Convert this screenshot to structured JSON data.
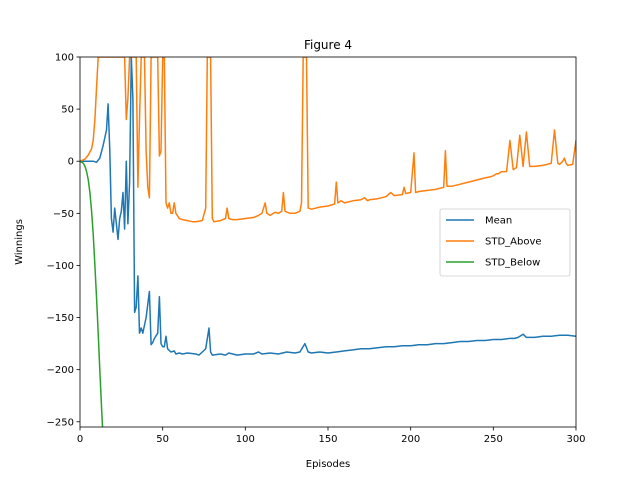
{
  "chart_data": {
    "type": "line",
    "title": "Figure 4",
    "xlabel": "Episodes",
    "ylabel": "Winnings",
    "xlim": [
      0,
      300
    ],
    "ylim": [
      -255,
      100
    ],
    "xticks": [
      0,
      50,
      100,
      150,
      200,
      250,
      300
    ],
    "yticks": [
      -250,
      -200,
      -150,
      -100,
      -50,
      0,
      50,
      100
    ],
    "grid": false,
    "legend_position": "center-right",
    "series": [
      {
        "name": "Mean",
        "color": "#1f77b4",
        "points": [
          [
            0,
            0
          ],
          [
            5,
            0
          ],
          [
            8,
            0
          ],
          [
            10,
            -1
          ],
          [
            12,
            3
          ],
          [
            14,
            15
          ],
          [
            16,
            30
          ],
          [
            17,
            55
          ],
          [
            18,
            10
          ],
          [
            19,
            -55
          ],
          [
            20,
            -68
          ],
          [
            21,
            -45
          ],
          [
            22,
            -60
          ],
          [
            23,
            -75
          ],
          [
            24,
            -55
          ],
          [
            25,
            -48
          ],
          [
            26,
            -30
          ],
          [
            27,
            -65
          ],
          [
            28,
            0
          ],
          [
            29,
            -60
          ],
          [
            30,
            -20
          ],
          [
            31,
            100
          ],
          [
            32,
            60
          ],
          [
            33,
            -145
          ],
          [
            34,
            -140
          ],
          [
            35,
            -110
          ],
          [
            36,
            -165
          ],
          [
            37,
            -160
          ],
          [
            38,
            -165
          ],
          [
            40,
            -150
          ],
          [
            42,
            -125
          ],
          [
            43,
            -176
          ],
          [
            44,
            -174
          ],
          [
            45,
            -170
          ],
          [
            47,
            -165
          ],
          [
            48,
            -130
          ],
          [
            49,
            -175
          ],
          [
            50,
            -178
          ],
          [
            51,
            -178
          ],
          [
            52,
            -168
          ],
          [
            53,
            -180
          ],
          [
            55,
            -183
          ],
          [
            57,
            -182
          ],
          [
            58,
            -185
          ],
          [
            60,
            -184
          ],
          [
            62,
            -185
          ],
          [
            65,
            -184
          ],
          [
            70,
            -185
          ],
          [
            72,
            -186
          ],
          [
            74,
            -183
          ],
          [
            76,
            -180
          ],
          [
            78,
            -160
          ],
          [
            79,
            -183
          ],
          [
            80,
            -186
          ],
          [
            85,
            -185
          ],
          [
            88,
            -186
          ],
          [
            90,
            -184
          ],
          [
            95,
            -186
          ],
          [
            100,
            -185
          ],
          [
            105,
            -185
          ],
          [
            108,
            -183
          ],
          [
            110,
            -185
          ],
          [
            115,
            -184
          ],
          [
            120,
            -185
          ],
          [
            125,
            -183
          ],
          [
            130,
            -184
          ],
          [
            133,
            -183
          ],
          [
            136,
            -175
          ],
          [
            138,
            -183
          ],
          [
            140,
            -184
          ],
          [
            145,
            -183
          ],
          [
            150,
            -184
          ],
          [
            155,
            -183
          ],
          [
            160,
            -182
          ],
          [
            165,
            -181
          ],
          [
            170,
            -180
          ],
          [
            175,
            -180
          ],
          [
            180,
            -179
          ],
          [
            185,
            -178
          ],
          [
            190,
            -178
          ],
          [
            195,
            -177
          ],
          [
            200,
            -177
          ],
          [
            205,
            -176
          ],
          [
            210,
            -176
          ],
          [
            215,
            -175
          ],
          [
            220,
            -175
          ],
          [
            225,
            -174
          ],
          [
            230,
            -173
          ],
          [
            235,
            -173
          ],
          [
            240,
            -172
          ],
          [
            245,
            -172
          ],
          [
            250,
            -171
          ],
          [
            255,
            -171
          ],
          [
            260,
            -170
          ],
          [
            263,
            -170
          ],
          [
            265,
            -169
          ],
          [
            268,
            -166
          ],
          [
            270,
            -169
          ],
          [
            275,
            -169
          ],
          [
            280,
            -168
          ],
          [
            285,
            -168
          ],
          [
            290,
            -167
          ],
          [
            295,
            -167
          ],
          [
            300,
            -168
          ]
        ]
      },
      {
        "name": "STD_Above",
        "color": "#ff7f0e",
        "points": [
          [
            0,
            0
          ],
          [
            3,
            2
          ],
          [
            5,
            6
          ],
          [
            7,
            12
          ],
          [
            8,
            20
          ],
          [
            9,
            40
          ],
          [
            10,
            70
          ],
          [
            11,
            100
          ],
          [
            27,
            100
          ],
          [
            28,
            40
          ],
          [
            29,
            60
          ],
          [
            30,
            100
          ],
          [
            34,
            100
          ],
          [
            35,
            -25
          ],
          [
            36,
            40
          ],
          [
            37,
            100
          ],
          [
            39,
            100
          ],
          [
            40,
            10
          ],
          [
            41,
            -25
          ],
          [
            42,
            -35
          ],
          [
            43,
            100
          ],
          [
            47,
            100
          ],
          [
            48,
            5
          ],
          [
            49,
            10
          ],
          [
            50,
            100
          ],
          [
            51,
            100
          ],
          [
            52,
            -40
          ],
          [
            53,
            -45
          ],
          [
            54,
            -40
          ],
          [
            55,
            -50
          ],
          [
            56,
            -50
          ],
          [
            57,
            -40
          ],
          [
            58,
            -50
          ],
          [
            60,
            -55
          ],
          [
            62,
            -56
          ],
          [
            65,
            -57
          ],
          [
            68,
            -58
          ],
          [
            70,
            -58
          ],
          [
            74,
            -57
          ],
          [
            76,
            -45
          ],
          [
            77,
            100
          ],
          [
            79,
            100
          ],
          [
            80,
            -55
          ],
          [
            81,
            -58
          ],
          [
            85,
            -57
          ],
          [
            88,
            -55
          ],
          [
            89,
            -45
          ],
          [
            90,
            -55
          ],
          [
            92,
            -56
          ],
          [
            95,
            -56
          ],
          [
            100,
            -55
          ],
          [
            105,
            -54
          ],
          [
            108,
            -52
          ],
          [
            110,
            -50
          ],
          [
            112,
            -40
          ],
          [
            113,
            -50
          ],
          [
            115,
            -52
          ],
          [
            118,
            -49
          ],
          [
            120,
            -50
          ],
          [
            122,
            -48
          ],
          [
            123,
            -30
          ],
          [
            124,
            -48
          ],
          [
            127,
            -50
          ],
          [
            130,
            -50
          ],
          [
            133,
            -48
          ],
          [
            134,
            -40
          ],
          [
            135,
            100
          ],
          [
            137,
            100
          ],
          [
            138,
            -45
          ],
          [
            140,
            -46
          ],
          [
            145,
            -44
          ],
          [
            150,
            -43
          ],
          [
            152,
            -42
          ],
          [
            154,
            -41
          ],
          [
            155,
            -20
          ],
          [
            156,
            -40
          ],
          [
            158,
            -38
          ],
          [
            160,
            -40
          ],
          [
            165,
            -38
          ],
          [
            170,
            -37
          ],
          [
            172,
            -35
          ],
          [
            174,
            -38
          ],
          [
            175,
            -37
          ],
          [
            180,
            -36
          ],
          [
            185,
            -34
          ],
          [
            188,
            -30
          ],
          [
            190,
            -33
          ],
          [
            195,
            -32
          ],
          [
            196,
            -25
          ],
          [
            197,
            -31
          ],
          [
            200,
            -30
          ],
          [
            202,
            8
          ],
          [
            203,
            -30
          ],
          [
            205,
            -29
          ],
          [
            210,
            -28
          ],
          [
            215,
            -27
          ],
          [
            220,
            -25
          ],
          [
            221,
            10
          ],
          [
            222,
            -24
          ],
          [
            225,
            -24
          ],
          [
            230,
            -22
          ],
          [
            235,
            -20
          ],
          [
            240,
            -18
          ],
          [
            245,
            -16
          ],
          [
            248,
            -15
          ],
          [
            250,
            -14
          ],
          [
            252,
            -12
          ],
          [
            253,
            -12
          ],
          [
            255,
            -10
          ],
          [
            258,
            -10
          ],
          [
            260,
            20
          ],
          [
            262,
            -8
          ],
          [
            264,
            -6
          ],
          [
            266,
            25
          ],
          [
            268,
            -5
          ],
          [
            270,
            28
          ],
          [
            272,
            -5
          ],
          [
            275,
            -5
          ],
          [
            280,
            -4
          ],
          [
            285,
            -2
          ],
          [
            287,
            30
          ],
          [
            289,
            -2
          ],
          [
            290,
            -3
          ],
          [
            292,
            0
          ],
          [
            293,
            3
          ],
          [
            294,
            -2
          ],
          [
            295,
            -4
          ],
          [
            298,
            -3
          ],
          [
            300,
            20
          ]
        ]
      },
      {
        "name": "STD_Below",
        "color": "#2ca02c",
        "points": [
          [
            0,
            0
          ],
          [
            1,
            -1
          ],
          [
            2,
            -2
          ],
          [
            3,
            -5
          ],
          [
            4,
            -10
          ],
          [
            5,
            -18
          ],
          [
            6,
            -30
          ],
          [
            7,
            -48
          ],
          [
            8,
            -70
          ],
          [
            9,
            -100
          ],
          [
            10,
            -130
          ],
          [
            11,
            -165
          ],
          [
            12,
            -200
          ],
          [
            13,
            -235
          ],
          [
            13.6,
            -255
          ]
        ]
      }
    ]
  }
}
